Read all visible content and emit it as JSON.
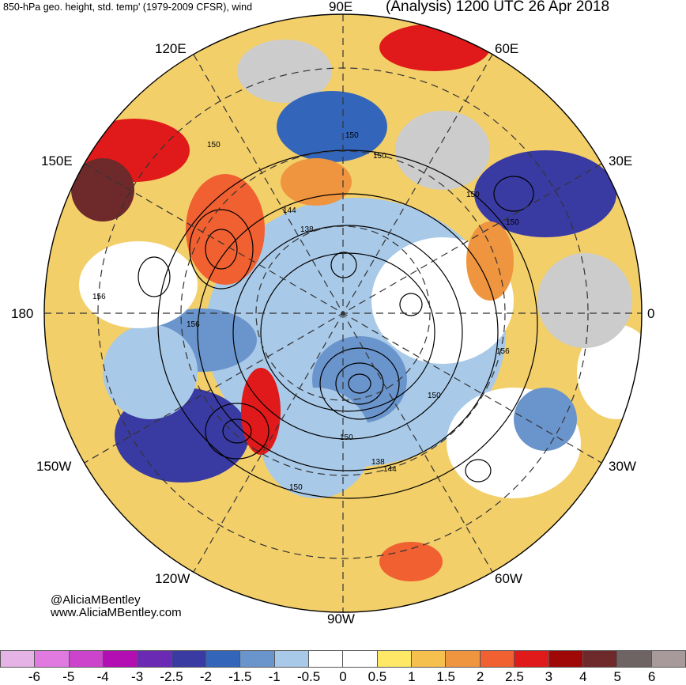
{
  "header": {
    "left_title": "850-hPa geo. height, std. temp' (1979-2009 CFSR), wind",
    "right_title": "(Analysis) 1200 UTC 26 Apr 2018"
  },
  "credits": {
    "handle": "@AliciaMBentley",
    "website": "www.AliciaMBentley.com"
  },
  "map": {
    "projection": "north-polar-stereographic",
    "longitude_labels": [
      {
        "text": "90E"
      },
      {
        "text": "60E"
      },
      {
        "text": "30E"
      },
      {
        "text": "0"
      },
      {
        "text": "30W"
      },
      {
        "text": "60W"
      },
      {
        "text": "90W"
      },
      {
        "text": "120W"
      },
      {
        "text": "150W"
      },
      {
        "text": "180"
      },
      {
        "text": "150E"
      },
      {
        "text": "120E"
      }
    ],
    "contour_labels": [
      "150",
      "150",
      "150",
      "144",
      "138",
      "150",
      "150",
      "156",
      "156",
      "156",
      "150",
      "150",
      "138",
      "144",
      "150"
    ]
  },
  "colorbar": {
    "colors": [
      "#e6b3e6",
      "#e07ae0",
      "#cc44cc",
      "#b30eb3",
      "#6b2ab3",
      "#3a3aa3",
      "#3366bb",
      "#6a94cc",
      "#a8c9e8",
      "#ffffff",
      "#ffffff",
      "#ffe866",
      "#f6c04e",
      "#f0953f",
      "#f06030",
      "#e01a1a",
      "#a00808",
      "#6e2a2a",
      "#6e6464",
      "#a89a9a"
    ],
    "labels": [
      "-6",
      "-5",
      "-4",
      "-3",
      "-2.5",
      "-2",
      "-1.5",
      "-1",
      "-0.5",
      "0",
      "0.5",
      "1",
      "1.5",
      "2",
      "2.5",
      "3",
      "4",
      "5",
      "6"
    ]
  }
}
